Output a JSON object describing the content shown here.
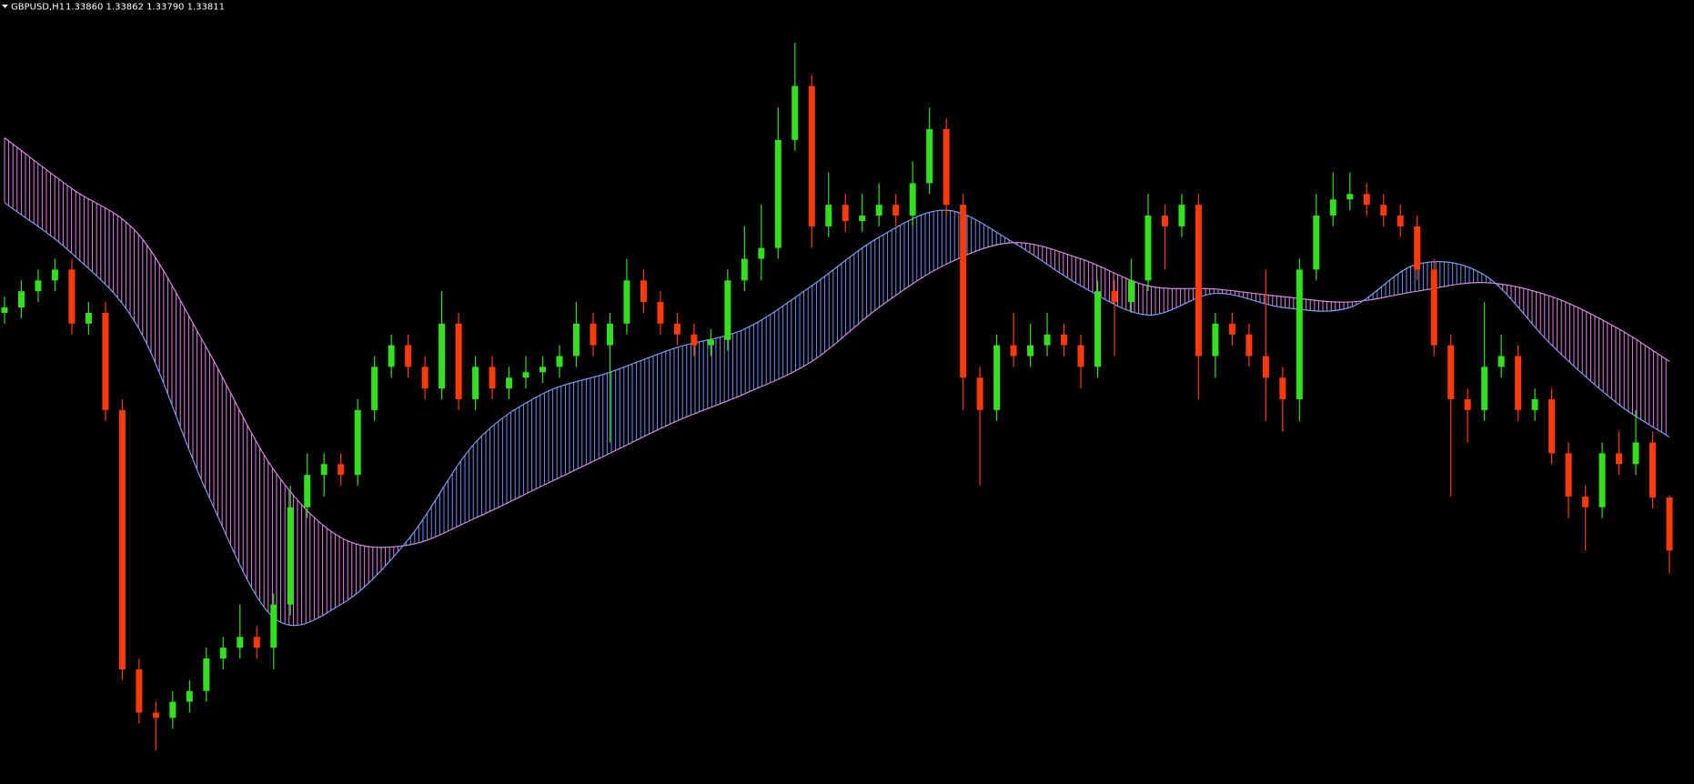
{
  "chart_data": {
    "type": "candlestick",
    "title": "GBPUSD,H1",
    "subtitle": "1.33860 1.33862 1.33790 1.33811",
    "up_color": "#32e01e",
    "down_color": "#ff3a0a",
    "band_colors": {
      "up": "#6f8fe8",
      "down": "#e27ee8"
    },
    "open": [
      1.34031,
      1.34036,
      1.34051,
      1.34061,
      1.34071,
      1.34021,
      1.34031,
      1.33941,
      1.33701,
      1.33661,
      1.33656,
      1.33671,
      1.33681,
      1.33711,
      1.33721,
      1.33731,
      1.33721,
      1.33761,
      1.33851,
      1.33881,
      1.33891,
      1.33881,
      1.33941,
      1.33981,
      1.34001,
      1.33981,
      1.33961,
      1.34021,
      1.33951,
      1.33981,
      1.33961,
      1.33971,
      1.33976,
      1.33981,
      1.33991,
      1.34021,
      1.34001,
      1.34021,
      1.34061,
      1.34041,
      1.34021,
      1.34011,
      1.34001,
      1.34006,
      1.34061,
      1.34081,
      1.34091,
      1.34191,
      1.34241,
      1.34111,
      1.34131,
      1.34116,
      1.34121,
      1.34131,
      1.34121,
      1.34151,
      1.34201,
      1.34131,
      1.33971,
      1.33941,
      1.34001,
      1.33991,
      1.34001,
      1.34011,
      1.34001,
      1.33981,
      1.34051,
      1.34041,
      1.34061,
      1.34121,
      1.34111,
      1.34131,
      1.33991,
      1.34021,
      1.34011,
      1.33991,
      1.33971,
      1.33951,
      1.34071,
      1.34121,
      1.34136,
      1.34141,
      1.34131,
      1.34121,
      1.34111,
      1.34071,
      1.34001,
      1.33951,
      1.33941,
      1.33981,
      1.33991,
      1.33941,
      1.33951,
      1.33901,
      1.33861,
      1.33851,
      1.33901,
      1.33891,
      1.33911,
      1.3386
    ],
    "high": [
      1.34046,
      1.34061,
      1.34071,
      1.34081,
      1.34081,
      1.34041,
      1.34041,
      1.33951,
      1.33711,
      1.33671,
      1.33681,
      1.33691,
      1.33721,
      1.33731,
      1.33761,
      1.33741,
      1.33771,
      1.33871,
      1.33901,
      1.33901,
      1.33901,
      1.33951,
      1.33991,
      1.34011,
      1.34011,
      1.33991,
      1.34051,
      1.34031,
      1.33991,
      1.33991,
      1.33981,
      1.33991,
      1.33991,
      1.34001,
      1.34041,
      1.34031,
      1.34031,
      1.34081,
      1.34071,
      1.34051,
      1.34031,
      1.34021,
      1.34016,
      1.34071,
      1.34111,
      1.34131,
      1.34221,
      1.34281,
      1.34251,
      1.34161,
      1.34141,
      1.34141,
      1.34151,
      1.34141,
      1.34171,
      1.34221,
      1.34211,
      1.34141,
      1.33981,
      1.34011,
      1.34031,
      1.34021,
      1.34031,
      1.34021,
      1.34011,
      1.34061,
      1.34061,
      1.34081,
      1.34141,
      1.34131,
      1.34141,
      1.34141,
      1.34031,
      1.34031,
      1.34021,
      1.34071,
      1.33981,
      1.34081,
      1.34141,
      1.34161,
      1.34161,
      1.34151,
      1.34141,
      1.34131,
      1.34121,
      1.34081,
      1.34011,
      1.33961,
      1.34041,
      1.34011,
      1.34001,
      1.33961,
      1.33961,
      1.33911,
      1.33871,
      1.33911,
      1.33921,
      1.33941,
      1.33921,
      1.33862
    ],
    "low": [
      1.34021,
      1.34026,
      1.34041,
      1.34051,
      1.34011,
      1.34011,
      1.33931,
      1.33691,
      1.33651,
      1.33626,
      1.33646,
      1.33661,
      1.33671,
      1.33701,
      1.33711,
      1.33711,
      1.33701,
      1.33751,
      1.33841,
      1.33861,
      1.33871,
      1.33871,
      1.33931,
      1.33971,
      1.33971,
      1.33951,
      1.33951,
      1.33941,
      1.33941,
      1.33951,
      1.33951,
      1.33961,
      1.33966,
      1.33971,
      1.33981,
      1.33991,
      1.33911,
      1.34011,
      1.34031,
      1.34011,
      1.34001,
      1.33991,
      1.33991,
      1.33996,
      1.34051,
      1.34061,
      1.34081,
      1.34181,
      1.34091,
      1.34101,
      1.34106,
      1.34106,
      1.34111,
      1.34111,
      1.34111,
      1.34141,
      1.34121,
      1.33941,
      1.33871,
      1.33931,
      1.33981,
      1.33981,
      1.33991,
      1.33991,
      1.33961,
      1.33971,
      1.33991,
      1.34031,
      1.34051,
      1.34071,
      1.34101,
      1.33951,
      1.33971,
      1.34001,
      1.33981,
      1.33931,
      1.33921,
      1.33931,
      1.34061,
      1.34111,
      1.34126,
      1.34121,
      1.34111,
      1.34101,
      1.34061,
      1.33991,
      1.33861,
      1.33911,
      1.33931,
      1.33971,
      1.33931,
      1.33931,
      1.33891,
      1.33841,
      1.33811,
      1.33841,
      1.33881,
      1.33881,
      1.3385,
      1.3379
    ],
    "close": [
      1.34036,
      1.34051,
      1.34061,
      1.34071,
      1.34021,
      1.34031,
      1.33941,
      1.33701,
      1.33661,
      1.33656,
      1.33671,
      1.33681,
      1.33711,
      1.33721,
      1.33731,
      1.33721,
      1.33761,
      1.33851,
      1.33881,
      1.33891,
      1.33881,
      1.33941,
      1.33981,
      1.34001,
      1.33981,
      1.33961,
      1.34021,
      1.33951,
      1.33981,
      1.33961,
      1.33971,
      1.33976,
      1.33981,
      1.33991,
      1.34021,
      1.34001,
      1.34021,
      1.34061,
      1.34041,
      1.34021,
      1.34011,
      1.34001,
      1.34006,
      1.34061,
      1.34081,
      1.34091,
      1.34191,
      1.34241,
      1.34111,
      1.34131,
      1.34116,
      1.34121,
      1.34131,
      1.34121,
      1.34151,
      1.34201,
      1.34131,
      1.33971,
      1.33941,
      1.34001,
      1.33991,
      1.34001,
      1.34011,
      1.34001,
      1.33981,
      1.34051,
      1.34041,
      1.34061,
      1.34121,
      1.34111,
      1.34131,
      1.33991,
      1.34021,
      1.34011,
      1.33991,
      1.33971,
      1.33951,
      1.34071,
      1.34121,
      1.34136,
      1.34141,
      1.34131,
      1.34121,
      1.34111,
      1.34071,
      1.34001,
      1.33951,
      1.33941,
      1.33981,
      1.33991,
      1.33941,
      1.33951,
      1.33901,
      1.33861,
      1.33851,
      1.33901,
      1.33891,
      1.33911,
      1.3386,
      1.33811
    ],
    "lines": [
      {
        "color": "#d68ae0",
        "x": [
          0,
          4,
          8,
          12,
          16,
          20,
          24,
          28,
          32,
          36,
          40,
          44,
          48,
          52,
          56,
          60,
          64,
          68,
          72,
          76,
          80,
          84,
          88,
          92,
          96,
          99
        ],
        "values": [
          1.34193,
          1.34146,
          1.34103,
          1.33999,
          1.33886,
          1.33823,
          1.33816,
          1.33841,
          1.33871,
          1.33901,
          1.33931,
          1.33956,
          1.33986,
          1.34036,
          1.34076,
          1.34096,
          1.34081,
          1.34056,
          1.34053,
          1.34046,
          1.34041,
          1.34051,
          1.34059,
          1.34046,
          1.34016,
          1.33986
        ]
      },
      {
        "color": "#7a9ef0",
        "x": [
          0,
          4,
          8,
          12,
          16,
          20,
          24,
          28,
          32,
          36,
          40,
          44,
          48,
          52,
          56,
          60,
          64,
          68,
          72,
          76,
          80,
          84,
          88,
          92,
          96,
          99
        ],
        "values": [
          1.34133,
          1.34086,
          1.34016,
          1.33866,
          1.33749,
          1.33761,
          1.33821,
          1.33911,
          1.33956,
          1.33976,
          1.33999,
          1.34016,
          1.34056,
          1.34101,
          1.34126,
          1.34096,
          1.34056,
          1.34029,
          1.34049,
          1.34036,
          1.34036,
          1.34076,
          1.34066,
          1.34001,
          1.33946,
          1.33916
        ]
      }
    ]
  }
}
